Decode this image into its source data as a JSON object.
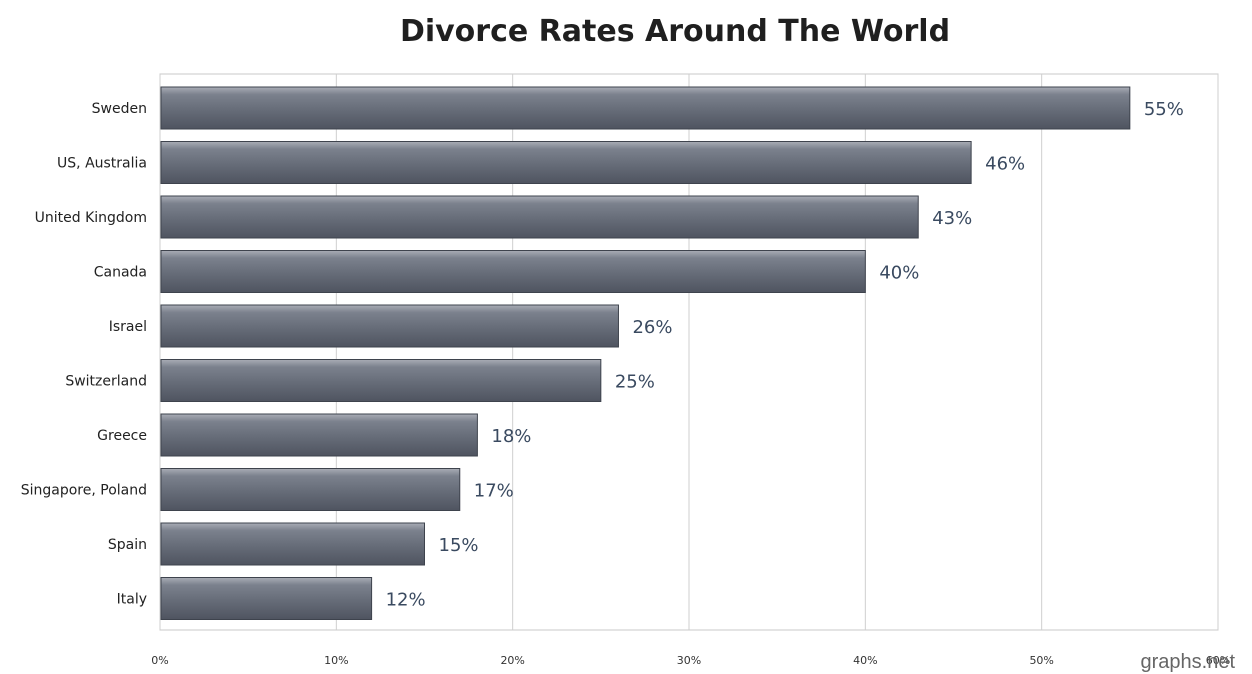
{
  "chart_data": {
    "type": "bar",
    "orientation": "horizontal",
    "title": "Divorce Rates Around The World",
    "categories": [
      "Sweden",
      "US, Australia",
      "United Kingdom",
      "Canada",
      "Israel",
      "Switzerland",
      "Greece",
      "Singapore, Poland",
      "Spain",
      "Italy"
    ],
    "values": [
      55,
      46,
      43,
      40,
      26,
      25,
      18,
      17,
      15,
      12
    ],
    "value_labels": [
      "55%",
      "46%",
      "43%",
      "40%",
      "26%",
      "25%",
      "18%",
      "17%",
      "15%",
      "12%"
    ],
    "xlim": [
      0,
      60
    ],
    "x_ticks": [
      0,
      10,
      20,
      30,
      40,
      50,
      60
    ],
    "x_tick_labels": [
      "0%",
      "10%",
      "20%",
      "30%",
      "40%",
      "50%",
      "60%"
    ],
    "grid": true,
    "bar_color": "#6d7380"
  },
  "watermark": "graphs.net"
}
